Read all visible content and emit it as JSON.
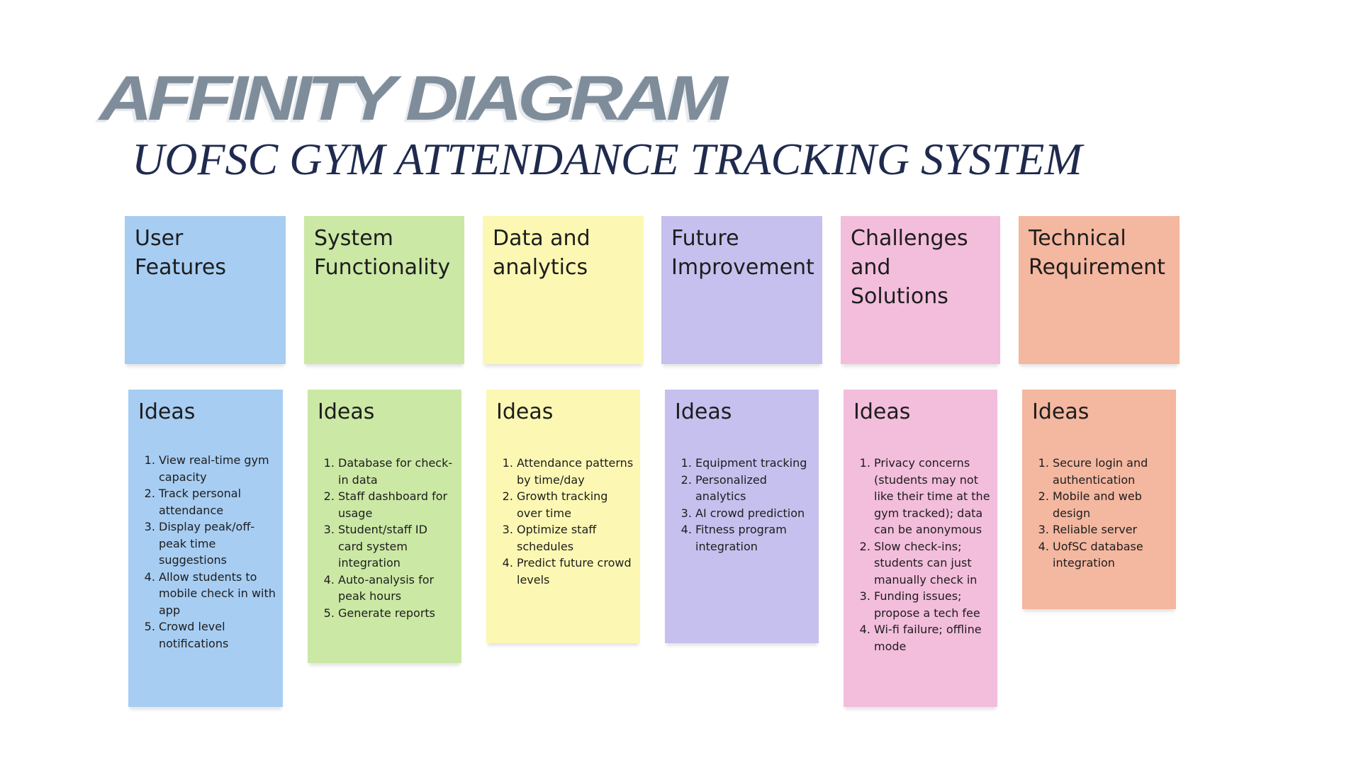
{
  "title": "AFFINITY DIAGRAM",
  "subtitle": "UOFSC GYM ATTENDANCE TRACKING SYSTEM",
  "ideas_label": "Ideas",
  "columns": [
    {
      "heading": "User Features",
      "color": "#a7cdf2",
      "ideas": [
        "View real-time gym capacity",
        "Track personal attendance",
        "Display peak/off-peak time suggestions",
        "Allow students to mobile check in with app",
        "Crowd level notifications"
      ]
    },
    {
      "heading": "System Functionality",
      "color": "#cbe8a5",
      "ideas": [
        "Database for check-in data",
        "Staff dashboard for usage",
        "Student/staff ID card system integration",
        "Auto-analysis for peak hours",
        "Generate reports"
      ]
    },
    {
      "heading": "Data and analytics",
      "color": "#fcf8b3",
      "ideas": [
        "Attendance patterns by time/day",
        "Growth tracking over time",
        "Optimize staff schedules",
        "Predict future crowd levels"
      ]
    },
    {
      "heading": "Future Improvement",
      "color": "#c5c0ee",
      "ideas": [
        "Equipment tracking",
        "Personalized analytics",
        "AI crowd prediction",
        "Fitness program integration"
      ]
    },
    {
      "heading": "Challenges and Solutions",
      "color": "#f3bddc",
      "ideas": [
        "Privacy concerns (students may not like their time at the gym tracked); data can be anonymous",
        "Slow check-ins; students can just manually check in",
        "Funding issues; propose a tech fee",
        "Wi-fi failure; offline mode"
      ]
    },
    {
      "heading": "Technical Requirement",
      "color": "#f4b7a0",
      "ideas": [
        "Secure login and authentication",
        "Mobile and web design",
        "Reliable server",
        "UofSC database integration"
      ]
    }
  ]
}
